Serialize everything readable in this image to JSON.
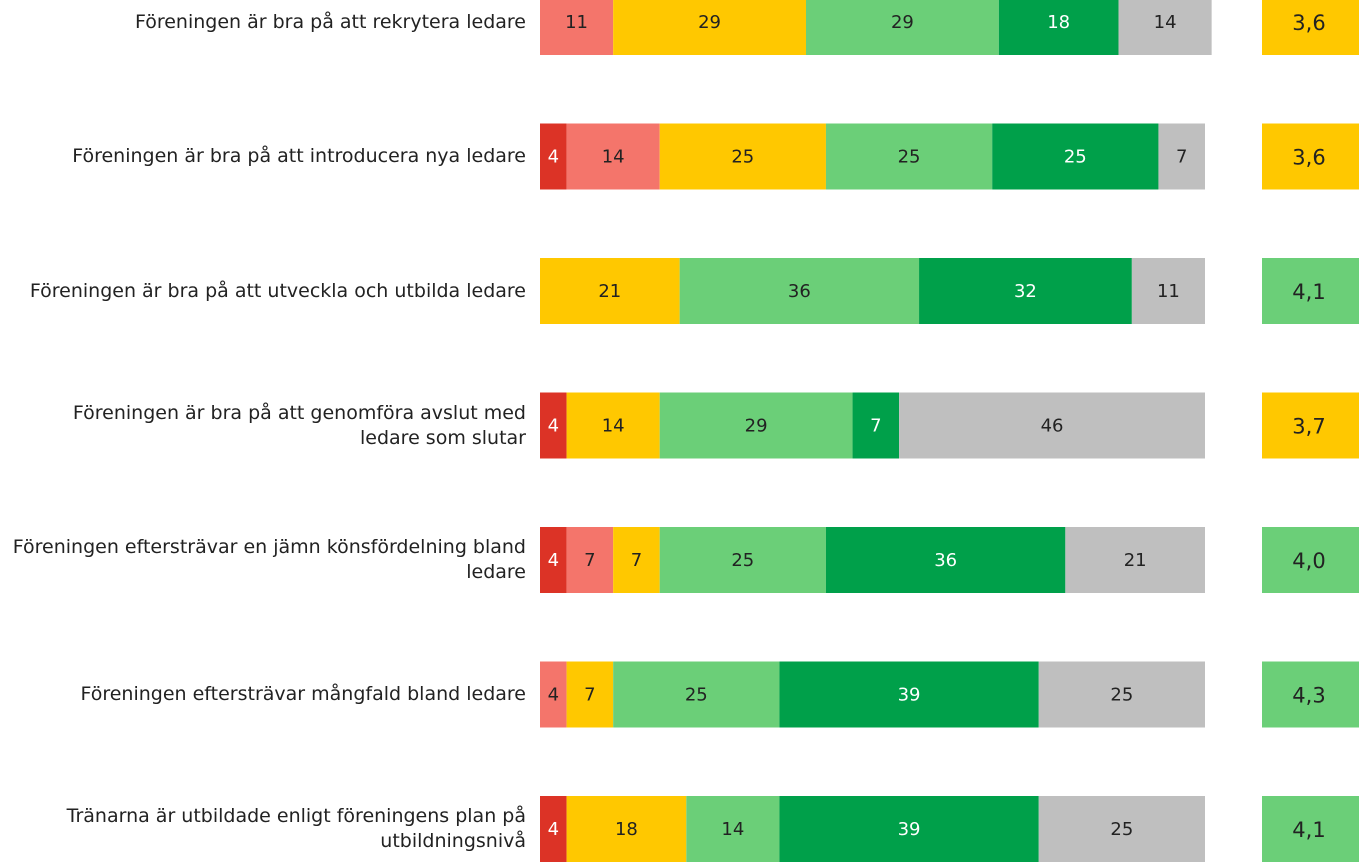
{
  "chart_data": {
    "type": "stacked-bar",
    "categories": [
      "Föreningen är bra på att rekrytera ledare",
      "Föreningen är bra på att introducera nya ledare",
      "Föreningen är bra på att utveckla och utbilda ledare",
      "Föreningen är bra på att genomföra avslut med ledare som slutar",
      "Föreningen eftersträvar en jämn könsfördelning bland ledare",
      "Föreningen eftersträvar mångfald bland ledare",
      "Tränarna är utbildade enligt föreningens plan på utbildningsnivå"
    ],
    "xlim": [
      0,
      100
    ],
    "series": [
      {
        "color": "#dc3326",
        "text_color": "#ffffff",
        "values": [
          null,
          4,
          null,
          4,
          4,
          null,
          4
        ]
      },
      {
        "color": "#f4756b",
        "text_color": "#222222",
        "values": [
          11,
          14,
          null,
          null,
          7,
          4,
          null
        ]
      },
      {
        "color": "#ffc800",
        "text_color": "#222222",
        "values": [
          29,
          25,
          21,
          14,
          7,
          7,
          18
        ]
      },
      {
        "color": "#6bcf78",
        "text_color": "#222222",
        "values": [
          29,
          25,
          36,
          29,
          25,
          25,
          14
        ]
      },
      {
        "color": "#00a04a",
        "text_color": "#ffffff",
        "values": [
          18,
          25,
          32,
          7,
          36,
          39,
          39
        ]
      },
      {
        "color": "#bfbfbf",
        "text_color": "#222222",
        "values": [
          14,
          7,
          11,
          46,
          21,
          25,
          25
        ]
      }
    ],
    "scores": {
      "values": [
        3.6,
        3.6,
        4.1,
        3.7,
        4.0,
        4.3,
        4.1
      ],
      "value_labels": [
        "3,6",
        "3,6",
        "4,1",
        "3,7",
        "4,0",
        "4,3",
        "4,1"
      ],
      "colors": [
        "#ffc800",
        "#ffc800",
        "#6bcf78",
        "#ffc800",
        "#6bcf78",
        "#6bcf78",
        "#6bcf78"
      ]
    }
  }
}
